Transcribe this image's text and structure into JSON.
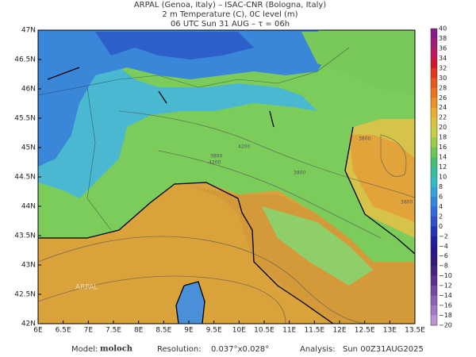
{
  "header": {
    "lines": [
      "ARPAL (Genoa, Italy)  –  ISAC-CNR (Bologna, Italy)",
      "2 m Temperature (C), 0C level (m)",
      "06 UTC Sun 31 AUG  –  τ = 06h"
    ]
  },
  "map": {
    "lat_labels": [
      "47N",
      "46.5N",
      "46N",
      "45.5N",
      "45N",
      "44.5N",
      "44N",
      "43.5N",
      "43N",
      "42.5N",
      "42N"
    ],
    "lon_labels": [
      "6E",
      "6.5E",
      "7E",
      "7.5E",
      "8E",
      "8.5E",
      "9E",
      "9.5E",
      "10E",
      "10.5E",
      "11E",
      "11.5E",
      "12E",
      "12.5E",
      "13E",
      "13.5E"
    ],
    "contour_labels": [
      "3800",
      "4200",
      "4200",
      "3800",
      "3800",
      "3800"
    ],
    "watermark": "ARPAL"
  },
  "colorbar": {
    "labels": [
      "40",
      "38",
      "36",
      "34",
      "32",
      "30",
      "28",
      "26",
      "24",
      "22",
      "20",
      "18",
      "16",
      "14",
      "12",
      "10",
      "8",
      "6",
      "4",
      "2",
      "0",
      "−2",
      "−4",
      "−6",
      "−8",
      "−10",
      "−12",
      "−14",
      "−16",
      "−18",
      "−20"
    ]
  },
  "footer": {
    "model_label": "Model:",
    "model": "moloch",
    "resolution_label": "Resolution:",
    "resolution": "0.037°x0.028°",
    "analysis_label": "Analysis:",
    "analysis": "Sun 00Z31AUG2025"
  }
}
